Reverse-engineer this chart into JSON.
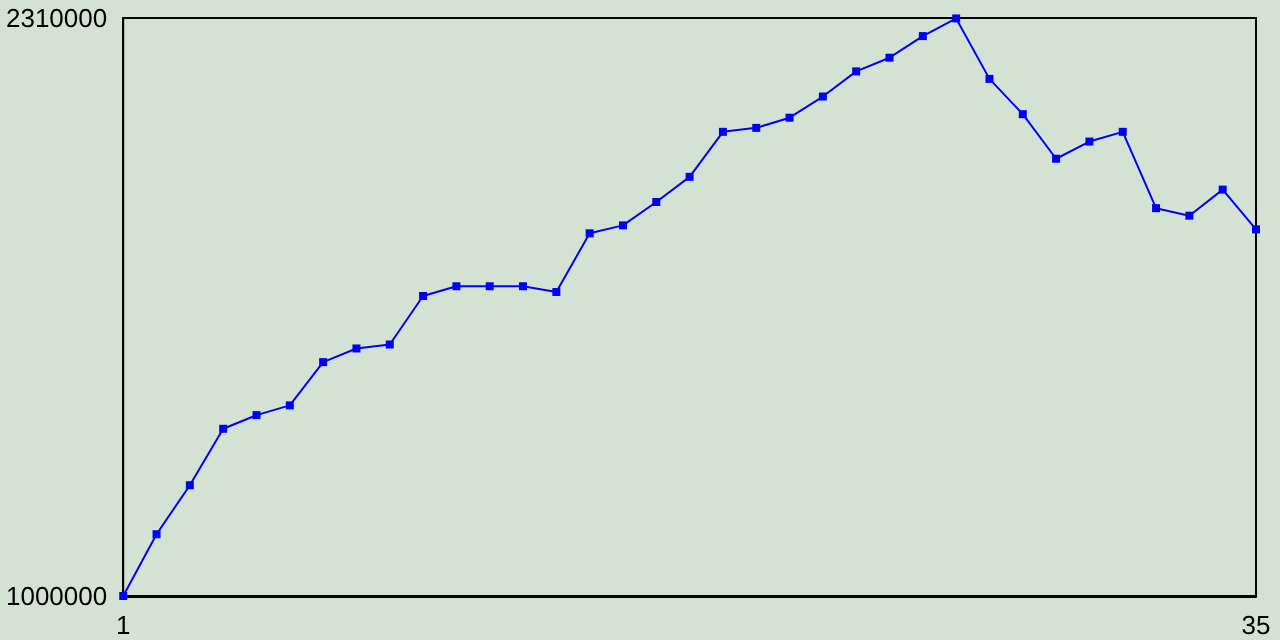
{
  "chart_data": {
    "type": "line",
    "x": [
      1,
      2,
      3,
      4,
      5,
      6,
      7,
      8,
      9,
      10,
      11,
      12,
      13,
      14,
      15,
      16,
      17,
      18,
      19,
      20,
      21,
      22,
      23,
      24,
      25,
      26,
      27,
      28,
      29,
      30,
      31,
      32,
      33,
      34,
      35
    ],
    "series": [
      {
        "color": "#0000ff",
        "values": [
          1000000,
          1140000,
          1251000,
          1379000,
          1410000,
          1432000,
          1530000,
          1561000,
          1570000,
          1680000,
          1702000,
          1702000,
          1702000,
          1689000,
          1822000,
          1840000,
          1893000,
          1950000,
          2052000,
          2061000,
          2084000,
          2132000,
          2189000,
          2220000,
          2269000,
          2309000,
          2172000,
          2092000,
          1991000,
          2030000,
          2052000,
          1879000,
          1862000,
          1921000,
          1831000
        ]
      }
    ],
    "xlim": [
      1,
      35
    ],
    "xticks": [
      1,
      35
    ],
    "ylim": [
      1000000,
      2310000
    ],
    "yticks": [
      1000000,
      2310000
    ],
    "grid": false,
    "marker": "square",
    "line_style": "solid"
  }
}
